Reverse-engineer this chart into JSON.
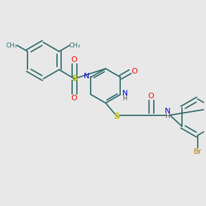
{
  "bg_color": "#e8e8e8",
  "bond_color": "#2d6b6b",
  "n_color": "#0000cc",
  "o_color": "#ee0000",
  "s_color": "#bbbb00",
  "br_color": "#bb7700",
  "h_color": "#555555",
  "figsize": [
    3.0,
    3.0
  ],
  "dpi": 100,
  "xlim": [
    0,
    10
  ],
  "ylim": [
    0,
    10
  ]
}
